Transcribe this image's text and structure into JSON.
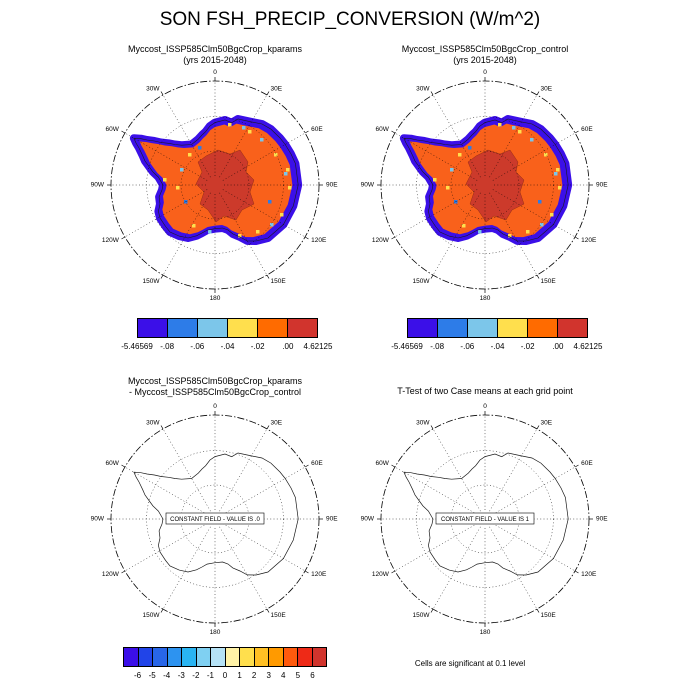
{
  "title": "SON FSH_PRECIP_CONVERSION (W/m^2)",
  "panels": {
    "top_left": {
      "title_line1": "Myccost_ISSP585Clm50BgcCrop_kparams",
      "title_line2": "(yrs 2015-2048)"
    },
    "top_right": {
      "title_line1": "Myccost_ISSP585Clm50BgcCrop_control",
      "title_line2": "(yrs 2015-2048)"
    },
    "bottom_left": {
      "title_line1": "Myccost_ISSP585Clm50BgcCrop_kparams",
      "title_line2": "- Myccost_ISSP585Clm50BgcCrop_control",
      "const_label": "CONSTANT FIELD - VALUE IS .0"
    },
    "bottom_right": {
      "title": "T-Test of two Case means at each grid point",
      "const_label": "CONSTANT FIELD - VALUE IS 1",
      "note": "Cells are significant at 0.1 level"
    }
  },
  "map": {
    "compass_labels": [
      {
        "label": "0",
        "angle": 0
      },
      {
        "label": "30E",
        "angle": 30
      },
      {
        "label": "60E",
        "angle": 60
      },
      {
        "label": "90E",
        "angle": 90
      },
      {
        "label": "120E",
        "angle": 120
      },
      {
        "label": "150E",
        "angle": 150
      },
      {
        "label": "180",
        "angle": 180
      },
      {
        "label": "150W",
        "angle": 210
      },
      {
        "label": "120W",
        "angle": 240
      },
      {
        "label": "90W",
        "angle": 270
      },
      {
        "label": "60W",
        "angle": 300
      },
      {
        "label": "30W",
        "angle": 330
      }
    ]
  },
  "map_colors": {
    "fringe": "#3b0fe8",
    "field": "#f9611b",
    "core": "#cc3a2b",
    "speckle_yellow": "#ffdf4d",
    "speckle_cyan": "#7cc6ea",
    "speckle_blue": "#2d7ce8",
    "coast": "#1a1a1a",
    "outline_fill": "#ffffff"
  },
  "colorbars": {
    "top": {
      "colors": [
        "#3b0fe8",
        "#2d7ce8",
        "#7cc6ea",
        "#ffdf4d",
        "#ff6b00",
        "#d1342d"
      ],
      "labels": [
        "-5.46569",
        "-.08",
        "-.06",
        "-.04",
        "-.02",
        ".00",
        "4.62125"
      ]
    },
    "bottom": {
      "colors": [
        "#3b0fe8",
        "#2144e8",
        "#2866e8",
        "#2d93f0",
        "#29b4f2",
        "#7fd0f2",
        "#b5e2f6",
        "#fff2a6",
        "#ffdf4d",
        "#ffc024",
        "#ff9a00",
        "#ff5a0d",
        "#ee2a17",
        "#d1342d"
      ],
      "labels": [
        "-6",
        "-5",
        "-4",
        "-3",
        "-2",
        "-1",
        "0",
        "1",
        "2",
        "3",
        "4",
        "5",
        "6"
      ]
    }
  },
  "chart_data": [
    {
      "type": "heatmap",
      "subtype": "south-polar-stereographic-map",
      "region": "Antarctica",
      "season": "SON",
      "variable": "FSH_PRECIP_CONVERSION",
      "units": "W/m^2",
      "title": "Myccost_ISSP585Clm50BgcCrop_kparams (yrs 2015-2048)",
      "data_min": -5.46569,
      "data_max": 4.62125,
      "colorbar_levels": [
        -5.46569,
        -0.08,
        -0.06,
        -0.04,
        -0.02,
        0.0,
        4.62125
      ],
      "legend_position": "bottom",
      "grid": "dotted lat-lon, 30 deg meridians"
    },
    {
      "type": "heatmap",
      "subtype": "south-polar-stereographic-map",
      "region": "Antarctica",
      "season": "SON",
      "variable": "FSH_PRECIP_CONVERSION",
      "units": "W/m^2",
      "title": "Myccost_ISSP585Clm50BgcCrop_control (yrs 2015-2048)",
      "data_min": -5.46569,
      "data_max": 4.62125,
      "colorbar_levels": [
        -5.46569,
        -0.08,
        -0.06,
        -0.04,
        -0.02,
        0.0,
        4.62125
      ],
      "legend_position": "bottom",
      "grid": "dotted lat-lon, 30 deg meridians"
    },
    {
      "type": "heatmap",
      "subtype": "south-polar-stereographic-map",
      "region": "Antarctica",
      "title": "Myccost_ISSP585Clm50BgcCrop_kparams - Myccost_ISSP585Clm50BgcCrop_control",
      "constant_field_value": 0,
      "annotation": "CONSTANT FIELD - VALUE IS .0",
      "colorbar_levels": [
        -6,
        -5,
        -4,
        -3,
        -2,
        -1,
        0,
        1,
        2,
        3,
        4,
        5,
        6
      ],
      "legend_position": "bottom"
    },
    {
      "type": "heatmap",
      "subtype": "south-polar-stereographic-map",
      "region": "Antarctica",
      "title": "T-Test of two Case means at each grid point",
      "constant_field_value": 1,
      "annotation": "CONSTANT FIELD - VALUE IS 1",
      "note": "Cells are significant at 0.1 level"
    }
  ]
}
